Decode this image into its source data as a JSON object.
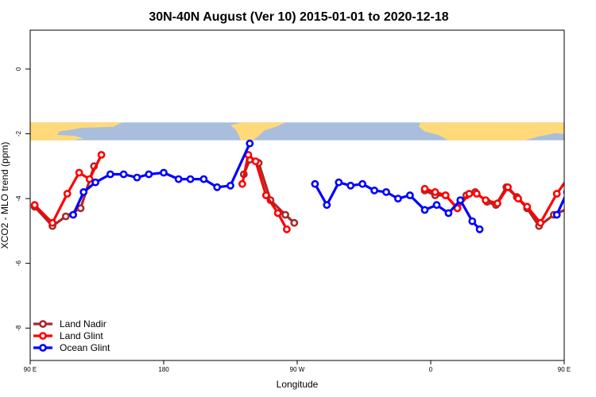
{
  "chart_data": {
    "type": "line",
    "title": "30N-40N August (Ver 10)   2015-01-01 to 2020-12-18",
    "xlabel": "Longitude",
    "ylabel": "XCO2 - MLO trend (ppm)",
    "xlim": [
      90,
      450
    ],
    "ylim": [
      -9,
      1.2
    ],
    "yticks": [
      0,
      -2,
      -4,
      -6,
      -8
    ],
    "xticks": [
      {
        "value": 90,
        "label": "90 E"
      },
      {
        "value": 180,
        "label": "180"
      },
      {
        "value": 270,
        "label": "90 W"
      },
      {
        "value": 360,
        "label": "0"
      },
      {
        "value": 450,
        "label": "90 E"
      },
      {
        "value": 540,
        "label": "180"
      }
    ],
    "grid": false,
    "legend_position": "bottom-left",
    "land_sea_strip": {
      "y_range": [
        -2.2,
        -1.65
      ],
      "land_color": "#FFD97A",
      "ocean_color": "#A9BEDC"
    },
    "series": [
      {
        "name": "Land Nadir",
        "color": "#A52A2A",
        "segments": [
          [
            [
              93,
              -4.25
            ],
            [
              105,
              -4.85
            ],
            [
              114,
              -4.55
            ],
            [
              124,
              -4.3
            ],
            [
              133,
              -3
            ]
          ],
          [
            [
              234,
              -3.25
            ],
            [
              238,
              -2.8
            ],
            [
              244,
              -2.9
            ],
            [
              252,
              -4.05
            ],
            [
              262,
              -4.5
            ],
            [
              268,
              -4.75
            ]
          ],
          [
            [
              356,
              -3.75
            ],
            [
              363,
              -3.9
            ],
            [
              370,
              -3.9
            ],
            [
              378,
              -4.3
            ],
            [
              384,
              -3.9
            ],
            [
              390,
              -3.8
            ],
            [
              398,
              -4.1
            ],
            [
              404,
              -4.2
            ],
            [
              411,
              -3.65
            ],
            [
              418,
              -3.95
            ],
            [
              425,
              -4.3
            ],
            [
              433,
              -4.85
            ],
            [
              443,
              -4.5
            ],
            [
              453,
              -4.3
            ],
            [
              462,
              -3
            ]
          ]
        ]
      },
      {
        "name": "Land Glint",
        "color": "#FF0000",
        "segments": [
          [
            [
              93,
              -4.2
            ],
            [
              105,
              -4.75
            ],
            [
              115,
              -3.85
            ],
            [
              123,
              -3.2
            ],
            [
              130,
              -3.4
            ],
            [
              138,
              -2.65
            ]
          ],
          [
            [
              233,
              -3.55
            ],
            [
              237,
              -2.65
            ],
            [
              242,
              -2.85
            ],
            [
              249,
              -3.9
            ],
            [
              257,
              -4.45
            ],
            [
              263,
              -4.95
            ]
          ],
          [
            [
              356,
              -3.7
            ],
            [
              363,
              -3.8
            ],
            [
              370,
              -3.9
            ],
            [
              378,
              -4.3
            ],
            [
              386,
              -3.85
            ],
            [
              391,
              -3.85
            ],
            [
              397,
              -4.05
            ],
            [
              405,
              -4.15
            ],
            [
              412,
              -3.65
            ],
            [
              419,
              -4.0
            ],
            [
              425,
              -4.25
            ],
            [
              434,
              -4.75
            ],
            [
              445,
              -3.85
            ],
            [
              455,
              -3.2
            ],
            [
              464,
              -3.4
            ],
            [
              471,
              -2.65
            ]
          ]
        ]
      },
      {
        "name": "Ocean Glint",
        "color": "#0000FF",
        "segments": [
          [
            [
              119,
              -4.5
            ],
            [
              126,
              -3.8
            ],
            [
              134,
              -3.5
            ],
            [
              144,
              -3.25
            ],
            [
              153,
              -3.25
            ],
            [
              162,
              -3.35
            ],
            [
              170,
              -3.25
            ],
            [
              180,
              -3.2
            ],
            [
              190,
              -3.4
            ],
            [
              198,
              -3.4
            ],
            [
              207,
              -3.4
            ],
            [
              216,
              -3.65
            ],
            [
              225,
              -3.6
            ],
            [
              238,
              -2.3
            ]
          ],
          [
            [
              282,
              -3.55
            ],
            [
              290,
              -4.2
            ],
            [
              298,
              -3.5
            ],
            [
              306,
              -3.6
            ],
            [
              314,
              -3.55
            ],
            [
              322,
              -3.75
            ],
            [
              330,
              -3.8
            ],
            [
              338,
              -4.0
            ],
            [
              346,
              -3.9
            ],
            [
              356,
              -4.35
            ],
            [
              364,
              -4.2
            ],
            [
              372,
              -4.45
            ],
            [
              380,
              -4.05
            ],
            [
              388,
              -4.7
            ],
            [
              393,
              -4.95
            ]
          ],
          [
            [
              445,
              -4.5
            ],
            [
              452,
              -3.8
            ],
            [
              459,
              -3.5
            ],
            [
              469,
              -3.25
            ],
            [
              478,
              -3.25
            ],
            [
              487,
              -3.35
            ],
            [
              495,
              -3.25
            ]
          ]
        ]
      }
    ]
  }
}
